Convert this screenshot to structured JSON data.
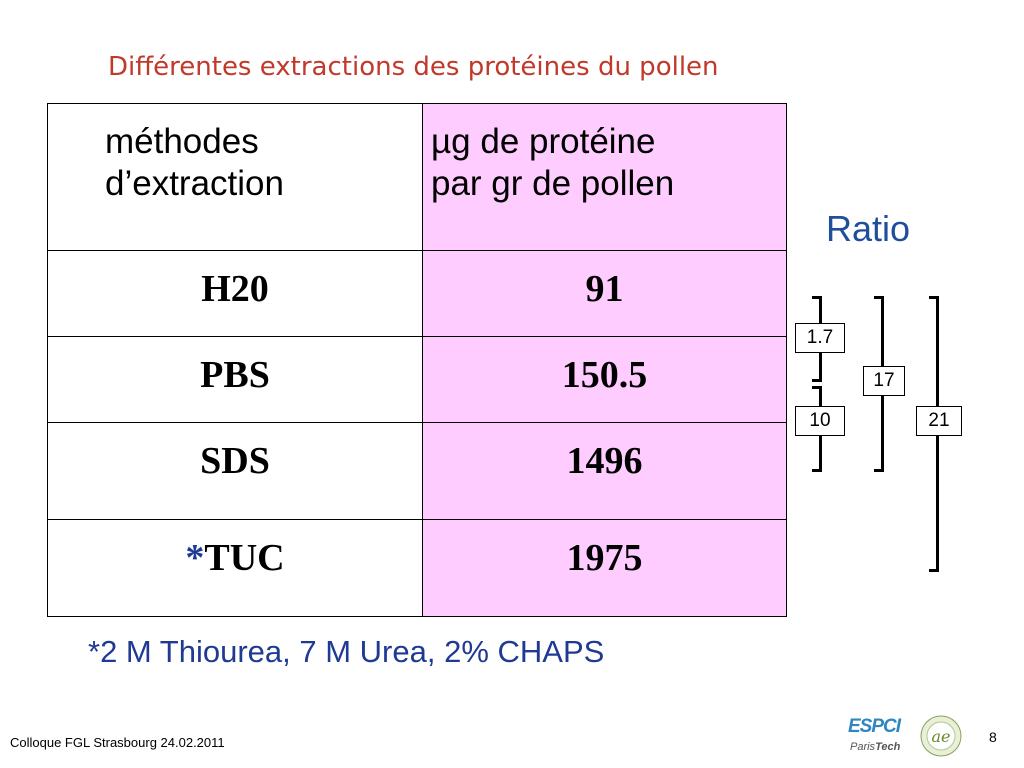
{
  "title": "Différentes extractions des protéines du pollen",
  "table": {
    "header": {
      "col1_line1": "méthodes",
      "col1_line2": "d’extraction",
      "col2_line1": "µg de protéine",
      "col2_line2": "par gr de pollen"
    },
    "rows": [
      {
        "method_star": "",
        "method": "H20",
        "value": "91"
      },
      {
        "method_star": "",
        "method": "PBS",
        "value": "150.5"
      },
      {
        "method_star": "",
        "method": "SDS",
        "value": "1496"
      },
      {
        "method_star": "*",
        "method": "TUC",
        "value": "1975"
      }
    ]
  },
  "ratio": {
    "label": "Ratio",
    "values": [
      "1.7",
      "10",
      "17",
      "21"
    ]
  },
  "footnote": "*2 M Thiourea, 7 M Urea, 2% CHAPS",
  "footer": "Colloque FGL Strasbourg  24.02.2011",
  "page_number": "8",
  "logo": {
    "espci": "ESPCI",
    "paris": "Paris",
    "tech": "Tech",
    "ae": "ae"
  }
}
